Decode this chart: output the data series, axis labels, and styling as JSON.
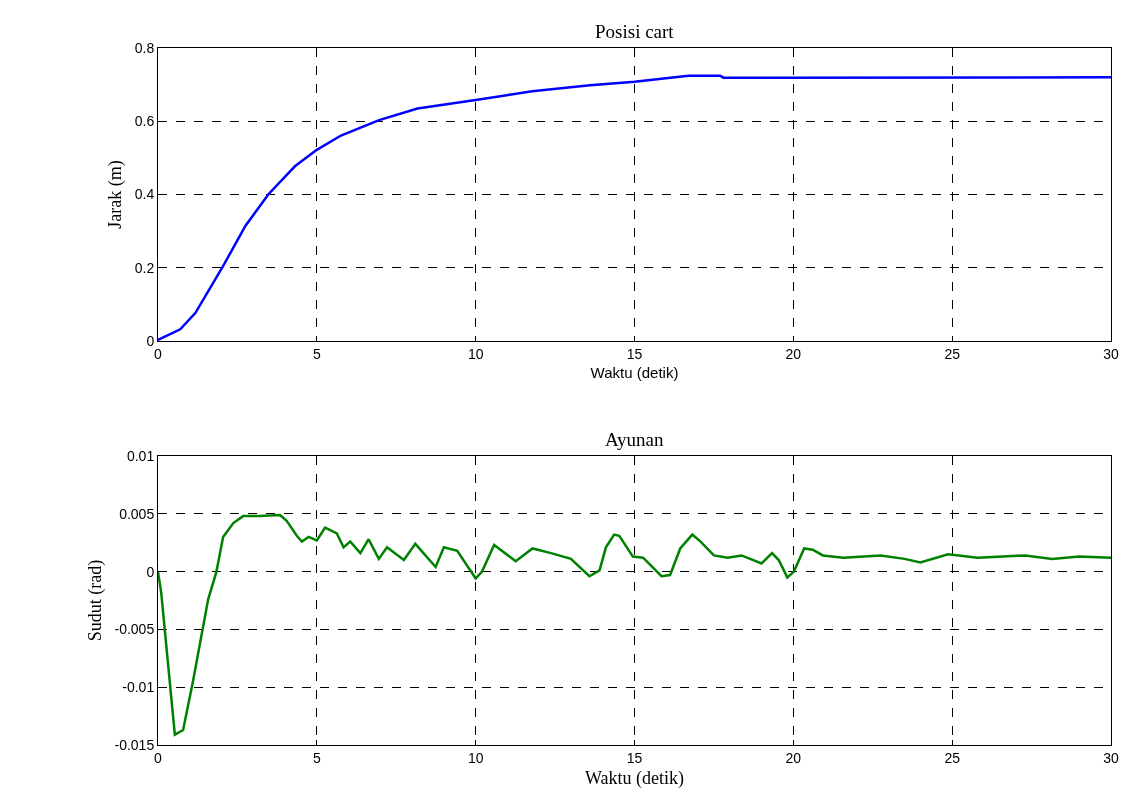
{
  "chart_data": [
    {
      "type": "line",
      "title": "Posisi cart",
      "xlabel": "Waktu (detik)",
      "ylabel": "Jarak (m)",
      "xlim": [
        0,
        30
      ],
      "xticks": [
        0,
        5,
        10,
        15,
        20,
        25,
        30
      ],
      "ylim": [
        0,
        0.8
      ],
      "yticks": [
        0,
        0.2,
        0.4,
        0.6,
        0.8
      ],
      "grid": true,
      "series": [
        {
          "color": "#0000ff",
          "x": [
            0,
            0.7,
            1.18,
            2.02,
            2.75,
            3.47,
            4.31,
            5,
            5.76,
            6.96,
            8.17,
            10,
            11.78,
            13.6,
            15,
            16.7,
            17.7,
            17.8,
            30
          ],
          "values": [
            0.003,
            0.032,
            0.077,
            0.2,
            0.314,
            0.4,
            0.477,
            0.522,
            0.561,
            0.603,
            0.635,
            0.658,
            0.682,
            0.698,
            0.708,
            0.724,
            0.724,
            0.719,
            0.72
          ]
        }
      ]
    },
    {
      "type": "line",
      "title": "Ayunan",
      "xlabel": "Waktu (detik)",
      "ylabel": "Sudut (rad)",
      "xlim": [
        0,
        30
      ],
      "xticks": [
        0,
        5,
        10,
        15,
        20,
        25,
        30
      ],
      "ylim": [
        -0.015,
        0.01
      ],
      "yticks": [
        -0.015,
        -0.01,
        -0.005,
        0,
        0.005,
        0.01
      ],
      "grid": true,
      "series": [
        {
          "color": "#008000",
          "x": [
            0,
            0.1,
            0.53,
            0.79,
            1.1,
            1.58,
            1.84,
            2.05,
            2.37,
            2.68,
            3.2,
            3.84,
            4.05,
            4.37,
            4.53,
            4.74,
            5.0,
            5.26,
            5.63,
            5.84,
            6.05,
            6.37,
            6.63,
            6.95,
            7.21,
            7.74,
            8.1,
            8.74,
            9.0,
            9.42,
            10.0,
            10.2,
            10.58,
            11.26,
            11.79,
            12.37,
            13.0,
            13.58,
            13.9,
            14.1,
            14.36,
            14.52,
            14.95,
            15.27,
            15.85,
            16.12,
            16.44,
            16.82,
            17.08,
            17.5,
            17.93,
            18.37,
            19.0,
            19.33,
            19.54,
            19.81,
            20.02,
            20.34,
            20.61,
            20.93,
            21.57,
            22.75,
            23.5,
            24.0,
            24.87,
            25.8,
            27.3,
            28.15,
            29.0,
            30
          ],
          "values": [
            0,
            -0.0018,
            -0.0141,
            -0.0137,
            -0.0095,
            -0.0024,
            0,
            0.003,
            0.0042,
            0.0048,
            0.0048,
            0.0049,
            0.0044,
            0.0031,
            0.0026,
            0.003,
            0.0027,
            0.0038,
            0.0033,
            0.0021,
            0.0026,
            0.0016,
            0.0028,
            0.0011,
            0.0021,
            0.001,
            0.0024,
            0.0004,
            0.0021,
            0.0018,
            -0.0006,
            0,
            0.0023,
            0.0009,
            0.002,
            0.0016,
            0.0011,
            -0.0004,
            0.0001,
            0.0021,
            0.0032,
            0.0031,
            0.0013,
            0.0012,
            -0.0004,
            -0.0003,
            0.002,
            0.0032,
            0.0026,
            0.0014,
            0.0012,
            0.0014,
            0.0007,
            0.0016,
            0.001,
            -0.0005,
            0,
            0.002,
            0.0019,
            0.0014,
            0.0012,
            0.0014,
            0.0011,
            0.0008,
            0.0015,
            0.0012,
            0.0014,
            0.0011,
            0.0013,
            0.0012
          ]
        }
      ]
    }
  ]
}
